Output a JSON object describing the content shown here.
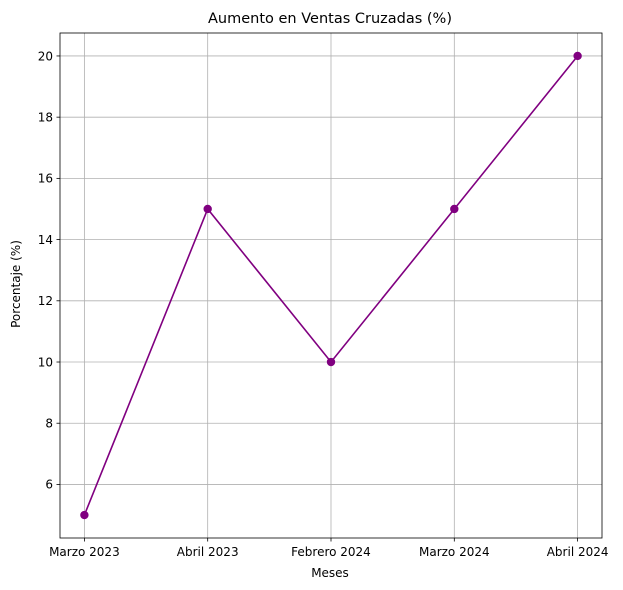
{
  "chart_data": {
    "type": "line",
    "title": "Aumento en Ventas Cruzadas (%)",
    "xlabel": "Meses",
    "ylabel": "Porcentaje (%)",
    "categories": [
      "Marzo 2023",
      "Abril 2023",
      "Febrero 2024",
      "Marzo 2024",
      "Abril 2024"
    ],
    "series": [
      {
        "values": [
          5,
          15,
          10,
          15,
          20
        ],
        "color": "#800080",
        "marker": "circle"
      }
    ],
    "yticks": [
      6,
      8,
      10,
      12,
      14,
      16,
      18,
      20
    ],
    "ylim": [
      4.25,
      20.75
    ],
    "grid": true
  }
}
